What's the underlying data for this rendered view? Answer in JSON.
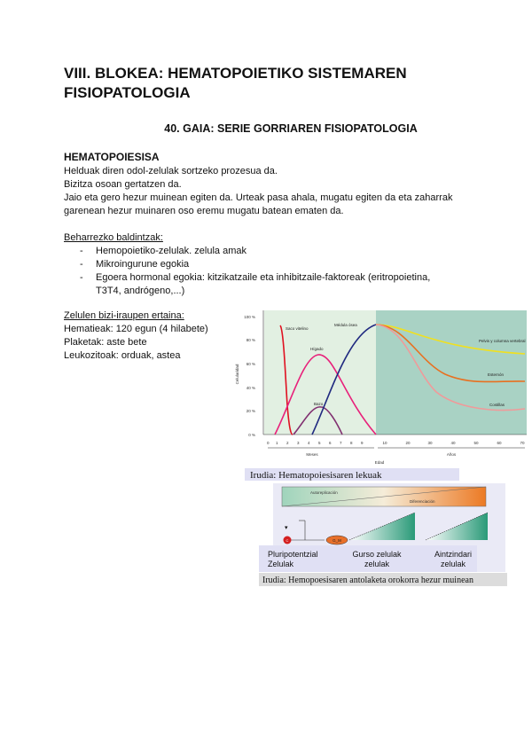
{
  "block_title": "VIII. BLOKEA: HEMATOPOIETIKO SISTEMAREN FISIOPATOLOGIA",
  "topic_title": "40. GAIA: SERIE GORRIAREN FISIOPATOLOGIA",
  "section": {
    "heading": "HEMATOPOIESISA",
    "lines": [
      "Helduak diren odol-zelulak sortzeko prozesua da.",
      "Bizitza osoan gertatzen da.",
      "Jaio eta gero hezur muinean egiten da. Urteak pasa ahala, mugatu egiten da eta zaharrak",
      "garenean hezur muinaren oso eremu mugatu batean ematen da."
    ]
  },
  "requirements": {
    "heading": "Beharrezko baldintzak:",
    "items": [
      "Hemopoietiko-zelulak. zelula amak",
      "Mikroingurune egokia",
      "Egoera hormonal egokia: kitzikatzaile eta inhibitzaile-faktoreak (eritropoietina,",
      "T3T4, andrógeno,...)"
    ]
  },
  "lifespan": {
    "heading": "Zelulen bizi-iraupen ertaina:",
    "lines": [
      "Hematieak: 120 egun (4 hilabete)",
      "Plaketak: aste bete",
      "Leukozitoak: orduak, astea"
    ]
  },
  "figure1": {
    "caption": "Irudia: Hematopoiesisaren lekuak",
    "ylabel": "Celularidad",
    "xlabel": "Edad",
    "yticks": [
      "0 %",
      "20 %",
      "40 %",
      "60 %",
      "80 %",
      "100 %"
    ],
    "xticks_months": [
      "0",
      "1",
      "2",
      "3",
      "4",
      "5",
      "6",
      "7",
      "8",
      "9"
    ],
    "xticks_years": [
      "10",
      "20",
      "30",
      "40",
      "50",
      "60",
      "70"
    ],
    "months_label": "Meses",
    "years_label": "Años",
    "curves": [
      "Saco vitelino",
      "Hígado",
      "Bazo",
      "Médula ósea",
      "Pelvis y columna vertebral",
      "Esternón",
      "Costillas"
    ]
  },
  "figure2": {
    "caption": "Irudia: Hemopoesisaren antolaketa orokorra hezur muinean",
    "bar_left": "Autoreplicación",
    "bar_right": "Diferenciación",
    "cell1": "C",
    "cell2": "G_M",
    "labels": [
      "Pluripotentzial Zelulak",
      "Gurso zelulak zelulak",
      "Aintzindari zelulak"
    ]
  }
}
